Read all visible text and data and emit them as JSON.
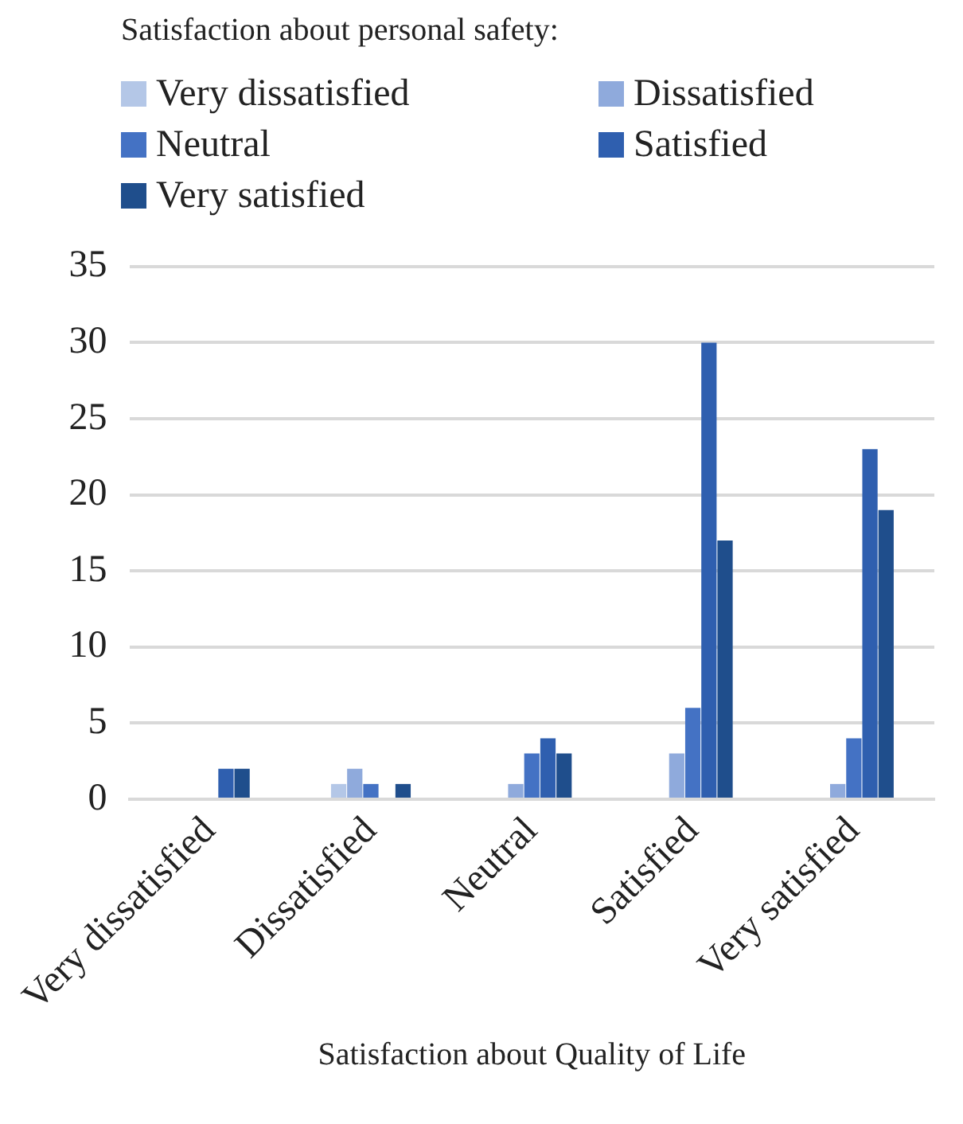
{
  "chart_data": {
    "type": "bar",
    "legend_title": "Satisfaction about personal safety:",
    "xlabel": "Satisfaction about Quality of Life",
    "categories": [
      "Very dissatisfied",
      "Dissatisfied",
      "Neutral",
      "Satisfied",
      "Very satisfied"
    ],
    "series": [
      {
        "name": "Very dissatisfied",
        "color": "#b4c7e7",
        "values": [
          0,
          1,
          0,
          0,
          0
        ]
      },
      {
        "name": "Dissatisfied",
        "color": "#8faadc",
        "values": [
          0,
          2,
          1,
          3,
          1
        ]
      },
      {
        "name": "Neutral",
        "color": "#4472c4",
        "values": [
          0,
          1,
          3,
          6,
          4
        ]
      },
      {
        "name": "Satisfied",
        "color": "#2f5faf",
        "values": [
          2,
          0,
          4,
          30,
          23
        ]
      },
      {
        "name": "Very satisfied",
        "color": "#1f4e8c",
        "values": [
          2,
          1,
          3,
          17,
          19
        ]
      }
    ],
    "ylim": [
      0,
      35
    ],
    "yticks": [
      0,
      5,
      10,
      15,
      20,
      25,
      30,
      35
    ],
    "grid": "y",
    "legend": "top"
  }
}
